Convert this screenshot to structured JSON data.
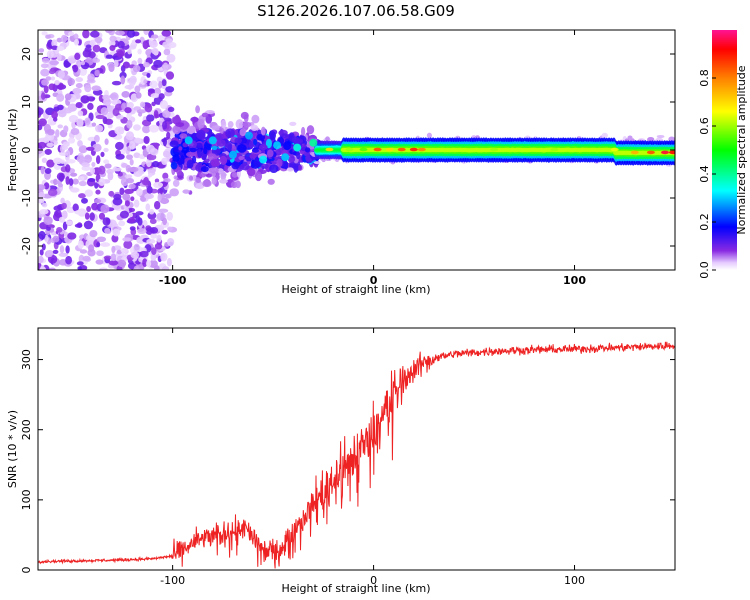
{
  "title": "S126.2026.107.06.58.G09",
  "colors": {
    "snr_line": "#ee2222",
    "background": "#ffffff",
    "axis": "#000000"
  },
  "chart_data": [
    {
      "type": "heatmap",
      "xlabel": "Height of straight line (km)",
      "ylabel": "Frequency (Hz)",
      "xlim": [
        -167,
        150
      ],
      "ylim": [
        -25,
        25
      ],
      "x_ticks": [
        -100,
        0,
        100
      ],
      "x_tick_labels": [
        "-100",
        "0",
        "100"
      ],
      "y_ticks": [
        -20,
        -10,
        0,
        10,
        20
      ],
      "y_tick_labels": [
        "-20",
        "-10",
        "0",
        "10",
        "20"
      ],
      "colorbar": {
        "label": "Normalized spectral amplitude",
        "range": [
          0,
          1
        ],
        "ticks": [
          0.0,
          0.2,
          0.4,
          0.6,
          0.8
        ],
        "tick_labels": [
          "0.0",
          "0.2",
          "0.4",
          "0.6",
          "0.8"
        ]
      },
      "features": [
        {
          "name": "scattered noise",
          "x_range": [
            -167,
            -100
          ],
          "freq_range": [
            -25,
            25
          ],
          "amplitude": 0.1
        },
        {
          "name": "diffuse blobs",
          "x_range": [
            -100,
            -30
          ],
          "freq_range": [
            -12,
            12
          ],
          "amplitude": 0.2
        },
        {
          "name": "narrow carrier line",
          "x_range": [
            -25,
            150
          ],
          "freq_center": 0,
          "freq_width": 2,
          "amplitude_peak": 0.95
        }
      ]
    },
    {
      "type": "line",
      "xlabel": "Height of straight line (km)",
      "ylabel": "SNR (10 * v/v)",
      "xlim": [
        -167,
        150
      ],
      "ylim": [
        0,
        345
      ],
      "x_ticks": [
        -100,
        0,
        100
      ],
      "x_tick_labels": [
        "-100",
        "0",
        "100"
      ],
      "y_ticks": [
        0,
        100,
        200,
        300
      ],
      "y_tick_labels": [
        "0",
        "100",
        "200",
        "300"
      ],
      "series": [
        {
          "name": "SNR",
          "x": [
            -167,
            -130,
            -110,
            -100,
            -95,
            -90,
            -85,
            -80,
            -75,
            -70,
            -65,
            -60,
            -55,
            -50,
            -45,
            -40,
            -35,
            -30,
            -25,
            -20,
            -15,
            -10,
            -5,
            0,
            5,
            10,
            15,
            20,
            25,
            30,
            40,
            50,
            60,
            80,
            100,
            120,
            150
          ],
          "values": [
            12,
            14,
            16,
            20,
            28,
            38,
            45,
            48,
            50,
            58,
            60,
            48,
            30,
            25,
            35,
            55,
            75,
            95,
            110,
            130,
            145,
            160,
            180,
            200,
            225,
            250,
            270,
            285,
            295,
            302,
            308,
            310,
            312,
            314,
            315,
            317,
            320
          ]
        }
      ]
    }
  ]
}
